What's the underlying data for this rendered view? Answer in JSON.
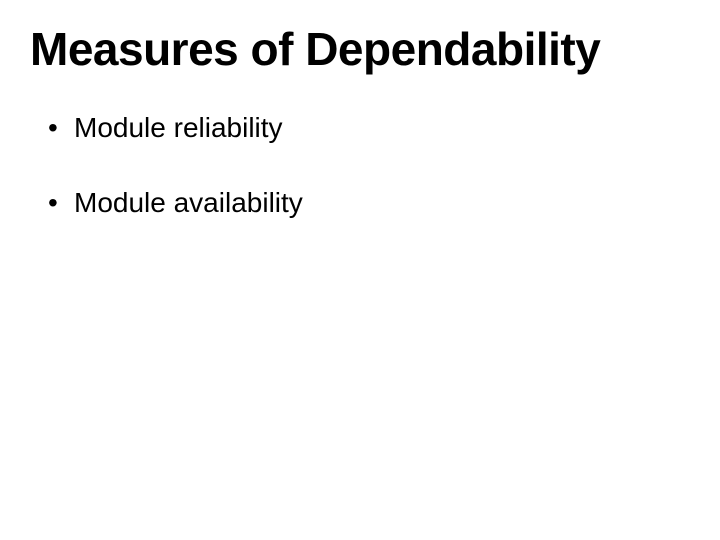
{
  "slide": {
    "title": "Measures of Dependability",
    "bullets": [
      {
        "text": "Module reliability"
      },
      {
        "text": "Module availability"
      }
    ]
  },
  "styling": {
    "background_color": "#ffffff",
    "text_color": "#000000",
    "title_fontsize": 46,
    "title_fontweight": "bold",
    "bullet_fontsize": 28,
    "bullet_spacing": 42,
    "font_family": "Verdana, Geneva, sans-serif"
  }
}
